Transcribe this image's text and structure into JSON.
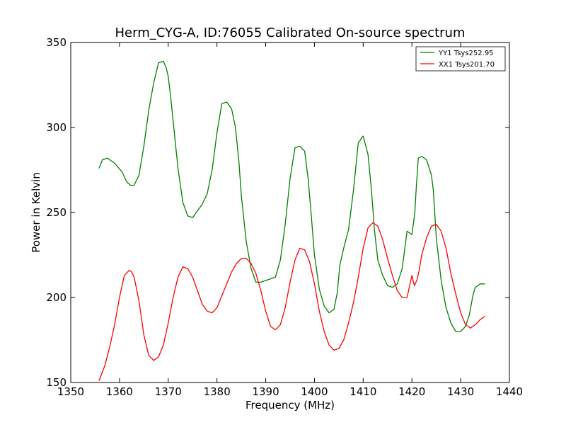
{
  "chart_data": {
    "type": "line",
    "title": "Herm_CYG-A, ID:76055 Calibrated On-source spectrum",
    "xlabel": "Frequency (MHz)",
    "ylabel": "Power in Kelvin",
    "xlim": [
      1350,
      1440
    ],
    "ylim": [
      150,
      350
    ],
    "xticks": [
      1350,
      1360,
      1370,
      1380,
      1390,
      1400,
      1410,
      1420,
      1430,
      1440
    ],
    "yticks": [
      150,
      200,
      250,
      300,
      350
    ],
    "grid": false,
    "legend_position": "top-right",
    "series": [
      {
        "name": "YY1 Tsys252.95",
        "color": "#008000",
        "x": [
          1355.8,
          1356.5,
          1357.5,
          1359,
          1360.5,
          1361.5,
          1362.3,
          1363,
          1364,
          1365,
          1366,
          1367,
          1368,
          1369,
          1369.6,
          1370,
          1370.5,
          1371,
          1372,
          1373,
          1374,
          1375,
          1376,
          1377,
          1378,
          1379,
          1380,
          1381,
          1382,
          1383,
          1383.8,
          1384.5,
          1385,
          1386,
          1387,
          1388,
          1389,
          1390,
          1391,
          1392,
          1393,
          1394,
          1395,
          1396,
          1397,
          1398,
          1398.7,
          1399.3,
          1400,
          1401,
          1402,
          1403,
          1404,
          1404.7,
          1405.2,
          1406,
          1407,
          1408,
          1409,
          1410,
          1411,
          1411.7,
          1412.3,
          1413,
          1414,
          1415,
          1416,
          1417,
          1418,
          1419,
          1420,
          1420.6,
          1420.9,
          1421.3,
          1422,
          1423,
          1424,
          1424.4,
          1425,
          1426,
          1427,
          1428,
          1429,
          1430,
          1431,
          1431.8,
          1432.5,
          1433,
          1434,
          1435
        ],
        "y": [
          276,
          281,
          282,
          279,
          274,
          268,
          266,
          266,
          272,
          289,
          310,
          326,
          338,
          339,
          335,
          330,
          318,
          304,
          276,
          256,
          248,
          247,
          251,
          255,
          261,
          275,
          297,
          314,
          315,
          311,
          300,
          280,
          260,
          233,
          217,
          209,
          209,
          210,
          211,
          212,
          222,
          243,
          270,
          288,
          289,
          286,
          270,
          250,
          225,
          205,
          195,
          191,
          193,
          203,
          219,
          229,
          240,
          263,
          291,
          295,
          284,
          263,
          240,
          222,
          213,
          207,
          206,
          208,
          217,
          239,
          237,
          250,
          265,
          282,
          283,
          281,
          272,
          263,
          235,
          210,
          194,
          185,
          180,
          180,
          183,
          190,
          201,
          206,
          208,
          208
        ]
      },
      {
        "name": "XX1 Tsys201.70",
        "color": "#ff0000",
        "x": [
          1355.8,
          1357,
          1358,
          1359,
          1360,
          1361,
          1362,
          1362.5,
          1363,
          1364,
          1365,
          1366,
          1367,
          1368,
          1369,
          1370,
          1371,
          1372,
          1373,
          1374,
          1375,
          1376,
          1377,
          1378,
          1379,
          1380,
          1381,
          1382,
          1383,
          1384,
          1385,
          1386,
          1387,
          1388,
          1389,
          1390,
          1391,
          1392,
          1393,
          1394,
          1395,
          1396,
          1397,
          1398,
          1399,
          1400,
          1401,
          1402,
          1403,
          1404,
          1405,
          1406,
          1407,
          1408,
          1409,
          1410,
          1411,
          1412,
          1413,
          1414,
          1415,
          1416,
          1417,
          1418,
          1419,
          1420,
          1420.5,
          1421,
          1421.5,
          1422,
          1423,
          1424,
          1425,
          1426,
          1427,
          1428,
          1429,
          1430,
          1431,
          1432,
          1433,
          1434,
          1435
        ],
        "y": [
          151,
          160,
          171,
          184,
          200,
          213,
          216,
          215,
          212,
          198,
          178,
          166,
          163,
          165,
          172,
          185,
          200,
          212,
          218,
          217,
          212,
          204,
          196,
          192,
          191,
          194,
          201,
          208,
          215,
          220,
          223,
          223,
          220,
          214,
          204,
          192,
          183,
          181,
          184,
          194,
          209,
          222,
          229,
          228,
          221,
          208,
          192,
          180,
          172,
          169,
          170,
          175,
          185,
          197,
          212,
          229,
          241,
          244,
          242,
          234,
          223,
          213,
          204,
          200,
          200,
          213,
          207,
          210,
          216,
          225,
          235,
          242,
          243,
          239,
          229,
          214,
          202,
          191,
          184,
          182,
          184,
          187,
          189
        ]
      }
    ]
  }
}
